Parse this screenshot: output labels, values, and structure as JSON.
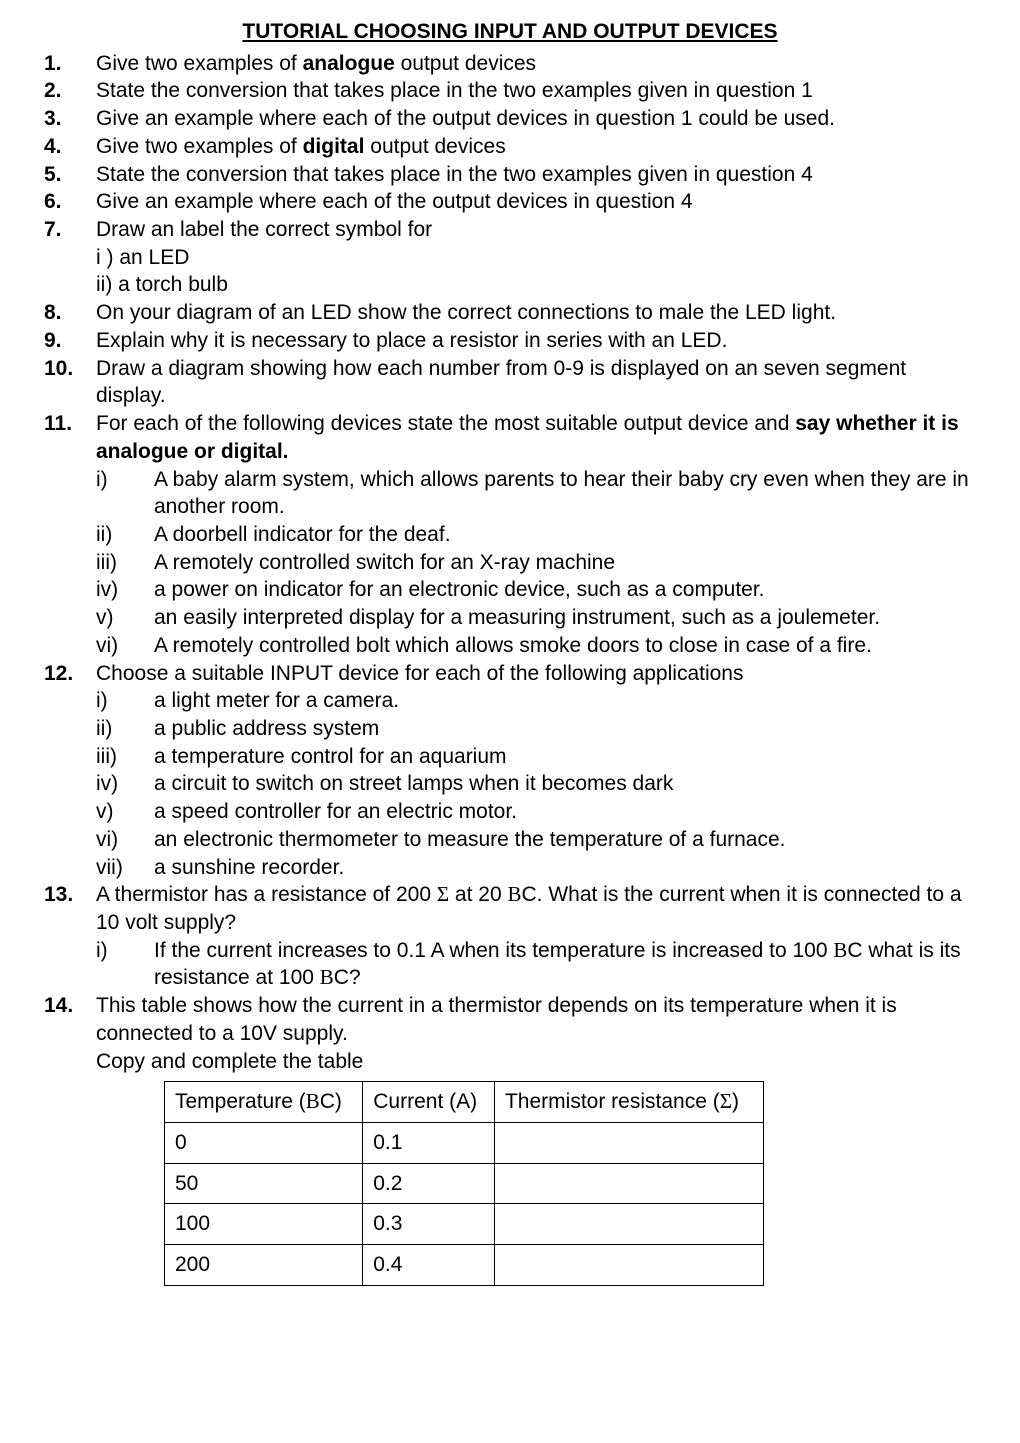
{
  "title": "TUTORIAL CHOOSING INPUT AND OUTPUT DEVICES",
  "q": {
    "n1": "1.",
    "t1a": "Give two examples of ",
    "t1b": "analogue",
    "t1c": " output devices",
    "n2": "2.",
    "t2": "State the conversion that takes place in the two examples given in question 1",
    "n3": "3.",
    "t3": "Give an example where each of the output devices in question 1 could be used.",
    "n4": "4.",
    "t4a": "Give two examples of ",
    "t4b": "digital",
    "t4c": " output devices",
    "n5": "5.",
    "t5": "State the conversion that takes place in the two examples given in question 4",
    "n6": "6.",
    "t6": "Give an example where each of the output devices in question 4",
    "n7": "7.",
    "t7": "Draw an label the correct symbol for",
    "t7i": "i ) an LED",
    "t7ii": "ii) a torch bulb",
    "n8": "8.",
    "t8": "On your diagram of an LED show the correct connections to male the LED light.",
    "n9": "9.",
    "t9": "Explain why it is necessary to place a resistor in series with an LED.",
    "n10": "10.",
    "t10": "Draw a diagram showing how each number from 0-9 is displayed on an seven segment display.",
    "n11": "11.",
    "t11a": "For each of the following devices state the most suitable output device and ",
    "t11b": "say whether it is analogue or digital.",
    "q11": {
      "k1": "i)",
      "t1": "A baby alarm system, which allows parents to hear their baby cry even when they are in another room.",
      "k2": "ii)",
      "t2": "A doorbell indicator for the deaf.",
      "k3": "iii)",
      "t3": "A remotely controlled switch for an X-ray machine",
      "k4": "iv)",
      "t4": "a power on indicator for an electronic device, such as a computer.",
      "k5": "v)",
      "t5": "an easily interpreted display for a measuring instrument, such as a joulemeter.",
      "k6": "vi)",
      "t6": "A remotely controlled bolt which allows smoke doors to close in case of a fire."
    },
    "n12": "12.",
    "t12": "Choose a suitable INPUT device for each of the following applications",
    "q12": {
      "k1": "i)",
      "t1": "a light meter for a camera.",
      "k2": "ii)",
      "t2": "a public address system",
      "k3": "iii)",
      "t3": "a temperature control for an aquarium",
      "k4": "iv)",
      "t4": "a circuit to switch on street lamps when it becomes dark",
      "k5": "v)",
      "t5": "a speed controller for an electric motor.",
      "k6": "vi)",
      "t6": "an electronic thermometer to measure the temperature of a furnace.",
      "k7": "vii)",
      "t7": "a sunshine recorder."
    },
    "n13": "13.",
    "t13a": "A thermistor has a resistance of 200 ",
    "t13_ohm": "Σ",
    "t13b": " at 20 ",
    "t13_deg": "Β",
    "t13c": "C. What is the current when it is connected to a 10 volt supply?",
    "q13": {
      "k1": "i)",
      "t1a": "If the current increases to 0.1 A when its temperature is increased to 100 ",
      "t1_deg": "Β",
      "t1b": "C what is its resistance at 100 ",
      "t1_deg2": "Β",
      "t1c": "C?"
    },
    "n14": "14.",
    "t14": "This table shows how the current in a thermistor depends on its temperature when it is connected to a 10V supply.",
    "t14b": "Copy and complete the table"
  },
  "table": {
    "h1a": "Temperature (",
    "h1_deg": "Β",
    "h1b": "C)",
    "h2": "Current (A)",
    "h3a": "Thermistor resistance (",
    "h3_ohm": "Σ",
    "h3b": ")",
    "rows": [
      {
        "temp": "0",
        "curr": "0.1",
        "res": ""
      },
      {
        "temp": "50",
        "curr": "0.2",
        "res": ""
      },
      {
        "temp": "100",
        "curr": "0.3",
        "res": ""
      },
      {
        "temp": "200",
        "curr": "0.4",
        "res": ""
      }
    ]
  }
}
